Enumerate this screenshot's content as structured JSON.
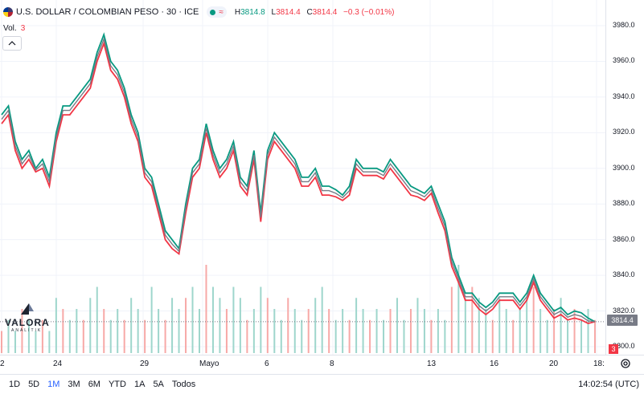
{
  "header": {
    "symbol_title": "U.S. DOLLAR / COLOMBIAN PESO · 30 · ICE",
    "status_pill_label": "≈",
    "ohlc": {
      "h_label": "H",
      "h_value": "3814.8",
      "l_label": "L",
      "l_value": "3814.4",
      "c_label": "C",
      "c_value": "3814.4",
      "change": "−0.3 (−0.01%)"
    }
  },
  "volume_legend": {
    "label": "Vol.",
    "value": "3"
  },
  "price_axis": {
    "ticks": [
      "3980.0",
      "3960.0",
      "3940.0",
      "3920.0",
      "3900.0",
      "3880.0",
      "3860.0",
      "3840.0",
      "3820.0",
      "3800.0"
    ]
  },
  "price_tag": "3814.4",
  "volume_tag": "3",
  "time_axis": {
    "labels": [
      "2",
      "24",
      "29",
      "Mayo",
      "6",
      "8",
      "13",
      "16",
      "20",
      "18:"
    ]
  },
  "range_buttons": [
    "1D",
    "5D",
    "1M",
    "3M",
    "6M",
    "YTD",
    "1A",
    "5A",
    "Todos"
  ],
  "active_range": "1M",
  "clock": "14:02:54 (UTC)",
  "watermark": {
    "word": "VALORA",
    "sub": "ANALITIK"
  },
  "colors": {
    "up": "#089981",
    "down": "#f23645",
    "line": "#787b86",
    "accent": "#2962ff"
  },
  "icons": {
    "flag": "currency-pair-flag-icon",
    "collapse": "chevron-up-icon",
    "settings": "gear-icon"
  },
  "chart_data": {
    "type": "line",
    "ylim": [
      3800,
      3980
    ],
    "grid": true,
    "series": [
      {
        "values": [
          3930,
          3935,
          3915,
          3905,
          3910,
          3900,
          3905,
          3895,
          3920,
          3935,
          3935,
          3940,
          3945,
          3950,
          3965,
          3975,
          3960,
          3955,
          3945,
          3930,
          3920,
          3900,
          3895,
          3880,
          3865,
          3860,
          3855,
          3880,
          3900,
          3905,
          3925,
          3910,
          3900,
          3905,
          3915,
          3895,
          3890,
          3910,
          3875,
          3910,
          3920,
          3915,
          3910,
          3905,
          3895,
          3895,
          3900,
          3890,
          3890,
          3888,
          3885,
          3890,
          3905,
          3900,
          3900,
          3900,
          3898,
          3905,
          3900,
          3895,
          3890,
          3888,
          3886,
          3890,
          3880,
          3870,
          3850,
          3840,
          3830,
          3830,
          3825,
          3822,
          3825,
          3830,
          3830,
          3830,
          3825,
          3830,
          3840,
          3830,
          3825,
          3820,
          3822,
          3818,
          3820,
          3819,
          3816,
          3814
        ]
      },
      {
        "values": [
          3925,
          3930,
          3910,
          3900,
          3905,
          3898,
          3900,
          3890,
          3915,
          3930,
          3930,
          3935,
          3940,
          3945,
          3960,
          3970,
          3955,
          3950,
          3940,
          3925,
          3915,
          3895,
          3890,
          3875,
          3860,
          3855,
          3852,
          3875,
          3895,
          3900,
          3920,
          3905,
          3895,
          3900,
          3910,
          3890,
          3885,
          3905,
          3870,
          3905,
          3915,
          3910,
          3905,
          3900,
          3890,
          3890,
          3895,
          3885,
          3885,
          3884,
          3882,
          3885,
          3900,
          3896,
          3896,
          3896,
          3894,
          3900,
          3895,
          3890,
          3885,
          3884,
          3882,
          3886,
          3875,
          3865,
          3845,
          3836,
          3826,
          3826,
          3821,
          3818,
          3821,
          3826,
          3826,
          3826,
          3821,
          3826,
          3836,
          3826,
          3821,
          3816,
          3818,
          3815,
          3816,
          3815,
          3813,
          3814
        ]
      }
    ],
    "volume": [
      2,
      3,
      2,
      4,
      3,
      2,
      3,
      2,
      5,
      4,
      3,
      4,
      3,
      5,
      6,
      4,
      3,
      4,
      3,
      5,
      4,
      3,
      6,
      4,
      3,
      5,
      4,
      5,
      6,
      4,
      8,
      6,
      5,
      4,
      6,
      5,
      3,
      4,
      6,
      5,
      4,
      3,
      5,
      4,
      3,
      4,
      5,
      6,
      4,
      3,
      4,
      3,
      5,
      4,
      3,
      4,
      3,
      4,
      5,
      3,
      4,
      5,
      4,
      3,
      4,
      3,
      6,
      8,
      5,
      6,
      5,
      4,
      3,
      5,
      4,
      3,
      4,
      5,
      6,
      4,
      3,
      4,
      5,
      3,
      4,
      3,
      4,
      3
    ]
  }
}
